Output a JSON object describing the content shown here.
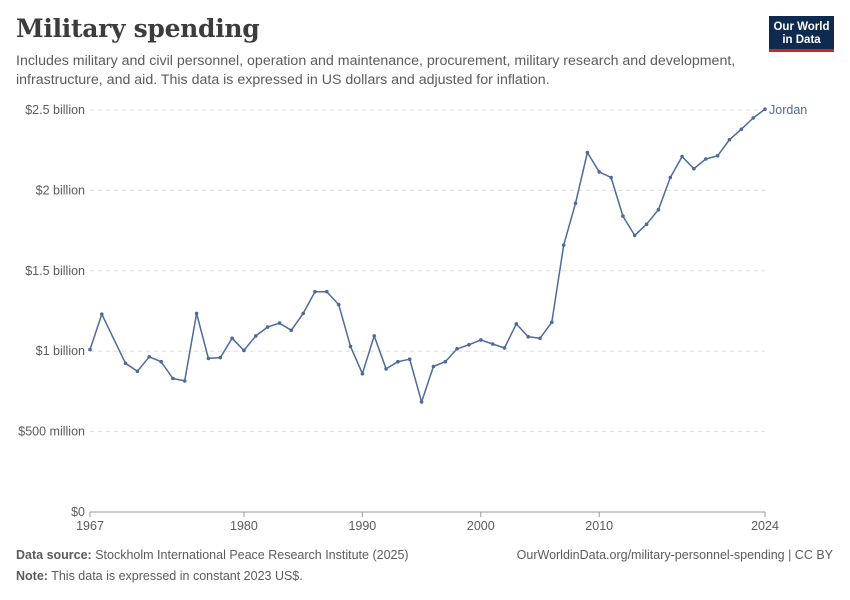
{
  "header": {
    "title": "Military spending",
    "subtitle": "Includes military and civil personnel, operation and maintenance, procurement, military research and development, infrastructure, and aid. This data is expressed in US dollars and adjusted for inflation.",
    "logo_line1": "Our World",
    "logo_line2": "in Data"
  },
  "footer": {
    "source_label": "Data source:",
    "source_text": "Stockholm International Peace Research Institute (2025)",
    "note_label": "Note:",
    "note_text": "This data is expressed in constant 2023 US$.",
    "url_license": "OurWorldinData.org/military-personnel-spending | CC BY"
  },
  "colors": {
    "series": "#4c6a9c",
    "grid": "#dddddd",
    "text": "#5b5b5b"
  },
  "chart_data": {
    "type": "line",
    "title": "Military spending",
    "xlim": [
      1967,
      2024
    ],
    "ylim": [
      0,
      2500000000
    ],
    "grid": "horizontal dashed",
    "x_ticks": [
      1967,
      1980,
      1990,
      2000,
      2010,
      2024
    ],
    "x_tick_labels": [
      "1967",
      "1980",
      "1990",
      "2000",
      "2010",
      "2024"
    ],
    "y_ticks": [
      0,
      500000000,
      1000000000,
      1500000000,
      2000000000,
      2500000000
    ],
    "y_tick_labels": [
      "$0",
      "$500 million",
      "$1 billion",
      "$1.5 billion",
      "$2 billion",
      "$2.5 billion"
    ],
    "series": [
      {
        "name": "Jordan",
        "x": [
          1967,
          1968,
          1969,
          1970,
          1971,
          1972,
          1973,
          1974,
          1975,
          1976,
          1977,
          1978,
          1979,
          1980,
          1981,
          1982,
          1983,
          1984,
          1985,
          1986,
          1987,
          1988,
          1989,
          1990,
          1991,
          1992,
          1993,
          1994,
          1995,
          1996,
          1997,
          1998,
          1999,
          2000,
          2001,
          2002,
          2003,
          2004,
          2005,
          2006,
          2007,
          2008,
          2009,
          2010,
          2011,
          2012,
          2013,
          2014,
          2015,
          2016,
          2017,
          2018,
          2019,
          2020,
          2021,
          2022,
          2023,
          2024
        ],
        "y": [
          1010000000,
          1230000000,
          null,
          925000000,
          875000000,
          965000000,
          935000000,
          830000000,
          815000000,
          1235000000,
          955000000,
          960000000,
          1080000000,
          1005000000,
          1095000000,
          1150000000,
          1175000000,
          1130000000,
          1235000000,
          1370000000,
          1370000000,
          1290000000,
          1030000000,
          860000000,
          1095000000,
          890000000,
          935000000,
          950000000,
          685000000,
          905000000,
          935000000,
          1015000000,
          1040000000,
          1070000000,
          1045000000,
          1020000000,
          1170000000,
          1090000000,
          1080000000,
          1180000000,
          1660000000,
          1920000000,
          2235000000,
          2115000000,
          2080000000,
          1840000000,
          1720000000,
          1790000000,
          1880000000,
          2080000000,
          2210000000,
          2135000000,
          2195000000,
          2215000000,
          2315000000,
          2380000000,
          2450000000,
          2505000000
        ]
      }
    ]
  }
}
